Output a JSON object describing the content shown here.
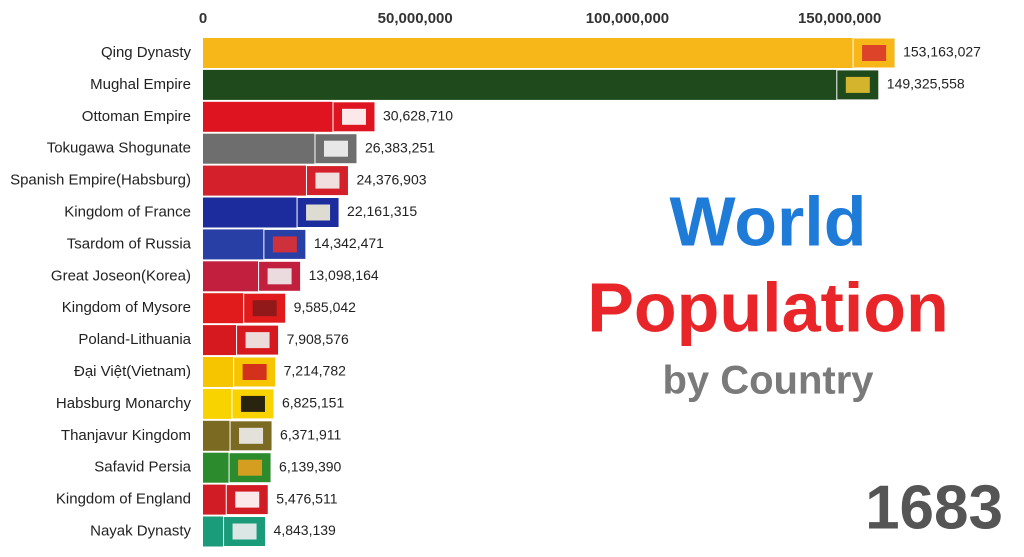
{
  "chart_data": {
    "type": "bar",
    "orientation": "horizontal",
    "title_lines": [
      "World",
      "Population"
    ],
    "title_colors": [
      "#1f7bd8",
      "#e8262a"
    ],
    "subtitle": "by Country",
    "year": "1683",
    "categories": [
      "Qing Dynasty",
      "Mughal Empire",
      "Ottoman Empire",
      "Tokugawa Shogunate",
      "Spanish Empire(Habsburg)",
      "Kingdom of France",
      "Tsardom of Russia",
      "Great Joseon(Korea)",
      "Kingdom of Mysore",
      "Poland-Lithuania",
      "Đại Việt(Vietnam)",
      "Habsburg Monarchy",
      "Thanjavur Kingdom",
      "Safavid Persia",
      "Kingdom of England",
      "Nayak Dynasty"
    ],
    "values": [
      153163027,
      149325558,
      30628710,
      26383251,
      24376903,
      22161315,
      14342471,
      13098164,
      9585042,
      7908576,
      7214782,
      6825151,
      6371911,
      6139390,
      5476511,
      4843139
    ],
    "value_labels": [
      "153,163,027",
      "149,325,558",
      "30,628,710",
      "26,383,251",
      "24,376,903",
      "22,161,315",
      "14,342,471",
      "13,098,164",
      "9,585,042",
      "7,908,576",
      "7,214,782",
      "6,825,151",
      "6,371,911",
      "6,139,390",
      "5,476,511",
      "4,843,139"
    ],
    "colors": [
      "#f7b718",
      "#1f4a1b",
      "#de1520",
      "#6e6e6e",
      "#d3202a",
      "#1c2c9c",
      "#2840a6",
      "#c21f3e",
      "#e11b1b",
      "#d6181f",
      "#f6c500",
      "#f9d300",
      "#7b6a22",
      "#2b8b2d",
      "#d21c25",
      "#1a9b7a"
    ],
    "xlim": [
      0,
      180000000
    ],
    "xticks": [
      0,
      {
        "value": 50000000,
        "label": "50,000,000"
      },
      {
        "value": 100000000,
        "label": "100,000,000"
      },
      {
        "value": 150000000,
        "label": "150,000,000"
      }
    ]
  }
}
